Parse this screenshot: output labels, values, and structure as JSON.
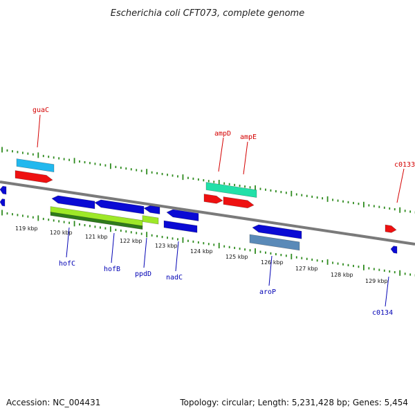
{
  "title": "Escherichia coli CFT073, complete genome",
  "footer": {
    "accession": "Accession: NC_004431",
    "summary": "Topology: circular; Length: 5,231,428 bp; Genes: 5,454"
  },
  "colors": {
    "backbone": "#7a7a7a",
    "tick": "#2e8b1e",
    "forward_label": "#d40000",
    "reverse_label": "#0000b4",
    "red": "#ee1111",
    "blue": "#0a0ad4",
    "cyan": "#22b8ee",
    "teal": "#22e0a8",
    "lime": "#9ee828",
    "steel": "#5a8ab8"
  },
  "kbp_labels": [
    "119 kbp",
    "120 kbp",
    "121 kbp",
    "122 kbp",
    "123 kbp",
    "124 kbp",
    "125 kbp",
    "126 kbp",
    "127 kbp",
    "128 kbp",
    "129 kbp"
  ],
  "gene_labels": {
    "forward": [
      "guaC",
      "ampD",
      "ampE",
      "c0133"
    ],
    "reverse": [
      "hofC",
      "hofB",
      "ppdD",
      "nadC",
      "aroP",
      "c0134"
    ]
  }
}
